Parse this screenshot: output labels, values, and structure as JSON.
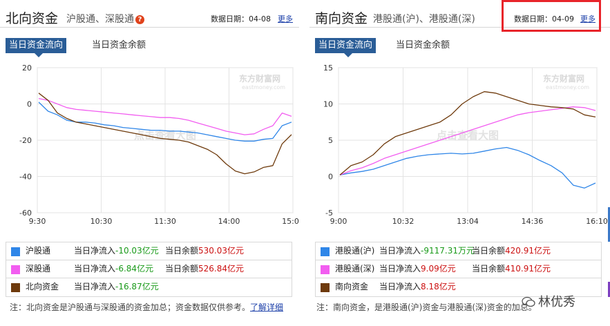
{
  "north": {
    "title": "北向资金",
    "subtitle": "沪股通、深股通",
    "date_label": "数据日期：04-08",
    "more_label": "更多",
    "tabs": [
      "当日资金流向",
      "当日资金余额"
    ],
    "watermark_logo": "东方财富网",
    "watermark_sub": "eastmoney.com",
    "watermark_center": "点击查看大图",
    "legend": [
      {
        "name": "沪股通",
        "flow_label": "当日净流入",
        "flow_value": "-10.03亿元",
        "balance_label": "当日余额",
        "balance_value": "530.03亿元",
        "color": "#2f86e8"
      },
      {
        "name": "深股通",
        "flow_label": "当日净流入",
        "flow_value": "-6.84亿元",
        "balance_label": "当日余额",
        "balance_value": "526.84亿元",
        "color": "#f25df0"
      },
      {
        "name": "北向资金",
        "flow_label": "当日净流入",
        "flow_value": "-16.87亿元",
        "balance_label": "",
        "balance_value": "",
        "color": "#6e3a0c"
      }
    ],
    "note": "注：北向资金是沪股通与深股通的资金加总；资金数据仅供参考。",
    "note_link": "了解详细"
  },
  "south": {
    "title": "南向资金",
    "subtitle": "港股通(沪)、港股通(深)",
    "date_label": "数据日期：04-09",
    "more_label": "更多",
    "tabs": [
      "当日资金流向",
      "当日资金余额"
    ],
    "watermark_logo": "东方财富网",
    "watermark_sub": "eastmoney.com",
    "watermark_center": "点击查看大图",
    "legend": [
      {
        "name": "港股通(沪)",
        "flow_label": "当日净流入",
        "flow_value": "-9117.31万元",
        "balance_label": "当日余额",
        "balance_value": "420.91亿元",
        "color": "#2f86e8"
      },
      {
        "name": "港股通(深)",
        "flow_label": "当日净流入",
        "flow_value": "9.09亿元",
        "balance_label": "当日余额",
        "balance_value": "410.91亿元",
        "color": "#f25df0"
      },
      {
        "name": "南向资金",
        "flow_label": "当日净流入",
        "flow_value": "8.18亿元",
        "balance_label": "",
        "balance_value": "",
        "color": "#6e3a0c"
      }
    ],
    "note": "注：南向资金，是港股通(沪)资金与港股通(深)资金的加总。"
  },
  "wechat_label": "林优秀",
  "chart_data": [
    {
      "type": "line",
      "x_ticks": [
        "9:30",
        "10:30",
        "11:30",
        "14:00",
        "15:00"
      ],
      "ylim": [
        -60,
        20
      ],
      "y_ticks": [
        20,
        0,
        -20,
        -40,
        -60
      ],
      "grid": true,
      "series": [
        {
          "name": "沪股通",
          "color": "#2f86e8",
          "values": [
            1,
            -4,
            -6,
            -9,
            -10,
            -10,
            -10.5,
            -11.5,
            -12,
            -13,
            -13.5,
            -14,
            -14.5,
            -14.5,
            -15,
            -15,
            -15.5,
            -16,
            -17,
            -18,
            -19,
            -20,
            -20.5,
            -20.5,
            -19.5,
            -19,
            -12,
            -10
          ]
        },
        {
          "name": "深股通",
          "color": "#f25df0",
          "values": [
            3,
            2,
            0,
            -2,
            -3,
            -3.5,
            -4,
            -4.5,
            -5,
            -5.5,
            -6,
            -6.5,
            -7,
            -7.5,
            -7.5,
            -8,
            -9,
            -10.5,
            -12,
            -13.5,
            -15,
            -16,
            -17,
            -16.5,
            -14,
            -12,
            -5,
            -6.8
          ]
        },
        {
          "name": "北向资金",
          "color": "#6e3a0c",
          "values": [
            6,
            2,
            -5,
            -8,
            -10,
            -11,
            -12,
            -13,
            -14,
            -15,
            -16,
            -17,
            -18,
            -19,
            -19.5,
            -20,
            -21,
            -23,
            -25,
            -28,
            -33,
            -37,
            -38.5,
            -37.5,
            -35,
            -34,
            -22,
            -16.9
          ]
        }
      ]
    },
    {
      "type": "line",
      "x_ticks": [
        "9:00",
        "10:32",
        "13:04",
        "14:36",
        "16:10"
      ],
      "ylim": [
        -5,
        15
      ],
      "y_ticks": [
        15,
        10,
        5,
        0,
        -5
      ],
      "grid": true,
      "series": [
        {
          "name": "港股通(沪)",
          "color": "#2f86e8",
          "values": [
            0.2,
            0.5,
            0.7,
            1.0,
            1.5,
            2.0,
            2.5,
            2.8,
            3.0,
            3.1,
            3.2,
            3.1,
            3.2,
            3.5,
            3.8,
            4.0,
            3.6,
            3.0,
            2.2,
            1.5,
            0.5,
            -1.2,
            -1.6,
            -0.9
          ]
        },
        {
          "name": "港股通(深)",
          "color": "#f25df0",
          "values": [
            0.2,
            0.8,
            1.2,
            1.8,
            2.5,
            3.0,
            3.5,
            4.0,
            4.5,
            5.0,
            5.5,
            6.0,
            6.5,
            7.0,
            7.5,
            8.0,
            8.5,
            8.8,
            9.0,
            9.2,
            9.4,
            9.6,
            9.5,
            9.1
          ]
        },
        {
          "name": "南向资金",
          "color": "#6e3a0c",
          "values": [
            0.2,
            1.5,
            2.0,
            3.0,
            4.5,
            5.5,
            6.0,
            6.5,
            7.0,
            7.5,
            8.5,
            10.0,
            11.0,
            11.7,
            11.5,
            11.0,
            10.5,
            10.0,
            9.8,
            9.6,
            9.5,
            9.3,
            8.5,
            8.2
          ]
        }
      ]
    }
  ]
}
